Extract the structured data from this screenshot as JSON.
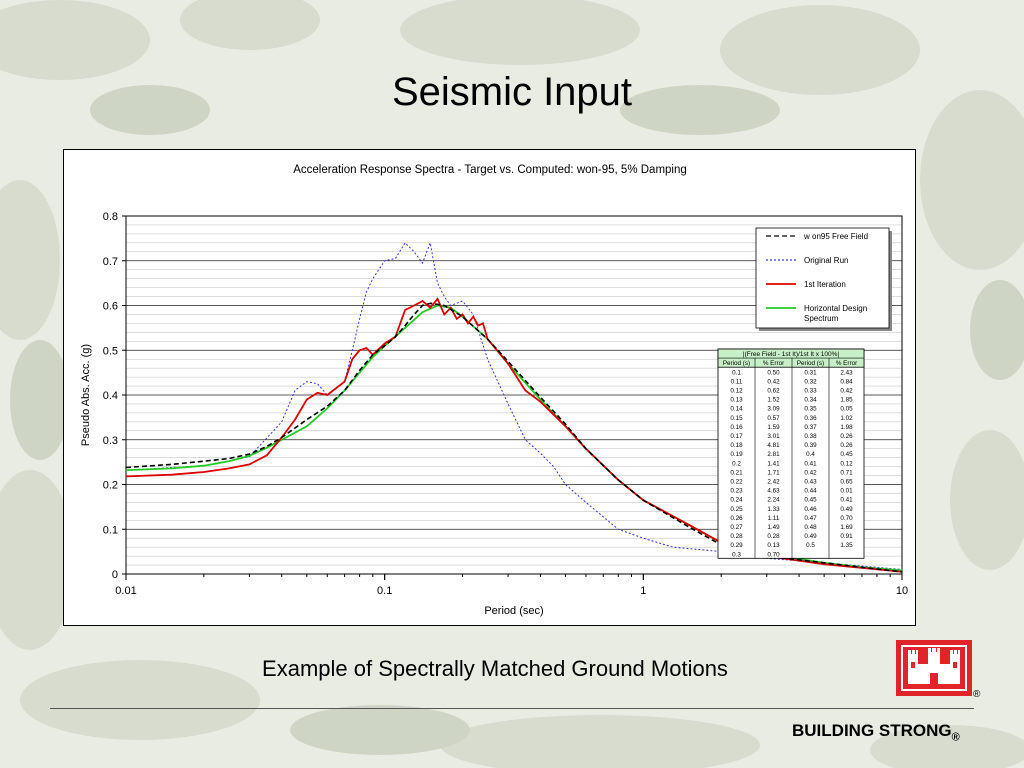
{
  "slide": {
    "title": "Seismic Input",
    "caption": "Example of Spectrally Matched Ground Motions",
    "footer_motto": "BUILDING STRONG",
    "footer_reg": "®",
    "logo_reg": "®"
  },
  "colors": {
    "free_field": "#000000",
    "original_run": "#3333dd",
    "first_iteration": "#dd0000",
    "design_spectrum": "#22cc22",
    "table_header_bg": "#c8f0c8",
    "logo_red": "#e0242a"
  },
  "chart_data": {
    "type": "line",
    "title": "Acceleration Response Spectra - Target vs. Computed: won-95, 5% Damping",
    "xlabel": "Period (sec)",
    "ylabel": "Pseudo Abs. Acc. (g)",
    "xscale": "log",
    "xlim": [
      0.01,
      10
    ],
    "ylim": [
      0,
      0.8
    ],
    "xticks": [
      "0.01",
      "0.1",
      "1",
      "10"
    ],
    "yticks": [
      "0",
      "0.1",
      "0.2",
      "0.3",
      "0.4",
      "0.5",
      "0.6",
      "0.7",
      "0.8"
    ],
    "grid": true,
    "legend_position": "top-right",
    "series": [
      {
        "name": "w on95 Free Field",
        "style": "dashed",
        "color": "#000000",
        "points": [
          [
            0.01,
            0.238
          ],
          [
            0.015,
            0.245
          ],
          [
            0.02,
            0.252
          ],
          [
            0.025,
            0.258
          ],
          [
            0.03,
            0.268
          ],
          [
            0.035,
            0.285
          ],
          [
            0.04,
            0.305
          ],
          [
            0.05,
            0.345
          ],
          [
            0.06,
            0.375
          ],
          [
            0.07,
            0.41
          ],
          [
            0.08,
            0.455
          ],
          [
            0.09,
            0.49
          ],
          [
            0.1,
            0.51
          ],
          [
            0.11,
            0.53
          ],
          [
            0.12,
            0.555
          ],
          [
            0.13,
            0.58
          ],
          [
            0.14,
            0.6
          ],
          [
            0.15,
            0.605
          ],
          [
            0.17,
            0.6
          ],
          [
            0.2,
            0.575
          ],
          [
            0.25,
            0.525
          ],
          [
            0.3,
            0.475
          ],
          [
            0.4,
            0.395
          ],
          [
            0.5,
            0.335
          ],
          [
            0.6,
            0.28
          ],
          [
            0.8,
            0.21
          ],
          [
            1,
            0.165
          ],
          [
            1.5,
            0.105
          ],
          [
            2,
            0.065
          ],
          [
            3,
            0.04
          ],
          [
            5,
            0.025
          ],
          [
            7,
            0.015
          ],
          [
            10,
            0.005
          ]
        ]
      },
      {
        "name": "Original Run",
        "style": "dotted",
        "color": "#3333dd",
        "points": [
          [
            0.01,
            0.232
          ],
          [
            0.02,
            0.242
          ],
          [
            0.03,
            0.262
          ],
          [
            0.04,
            0.34
          ],
          [
            0.045,
            0.41
          ],
          [
            0.05,
            0.43
          ],
          [
            0.055,
            0.425
          ],
          [
            0.06,
            0.4
          ],
          [
            0.07,
            0.43
          ],
          [
            0.075,
            0.5
          ],
          [
            0.08,
            0.57
          ],
          [
            0.085,
            0.63
          ],
          [
            0.09,
            0.66
          ],
          [
            0.1,
            0.7
          ],
          [
            0.11,
            0.705
          ],
          [
            0.12,
            0.74
          ],
          [
            0.13,
            0.72
          ],
          [
            0.14,
            0.695
          ],
          [
            0.15,
            0.74
          ],
          [
            0.16,
            0.65
          ],
          [
            0.17,
            0.62
          ],
          [
            0.18,
            0.6
          ],
          [
            0.2,
            0.61
          ],
          [
            0.22,
            0.58
          ],
          [
            0.25,
            0.48
          ],
          [
            0.3,
            0.38
          ],
          [
            0.35,
            0.3
          ],
          [
            0.4,
            0.27
          ],
          [
            0.45,
            0.24
          ],
          [
            0.5,
            0.2
          ],
          [
            0.6,
            0.16
          ],
          [
            0.8,
            0.1
          ],
          [
            1,
            0.08
          ],
          [
            1.3,
            0.06
          ],
          [
            2,
            0.05
          ],
          [
            3,
            0.035
          ],
          [
            5,
            0.025
          ],
          [
            10,
            0.01
          ]
        ]
      },
      {
        "name": "1st Iteration",
        "style": "solid",
        "color": "#dd0000",
        "points": [
          [
            0.01,
            0.218
          ],
          [
            0.015,
            0.222
          ],
          [
            0.02,
            0.228
          ],
          [
            0.025,
            0.236
          ],
          [
            0.03,
            0.245
          ],
          [
            0.035,
            0.265
          ],
          [
            0.04,
            0.305
          ],
          [
            0.045,
            0.345
          ],
          [
            0.05,
            0.39
          ],
          [
            0.055,
            0.405
          ],
          [
            0.06,
            0.4
          ],
          [
            0.07,
            0.43
          ],
          [
            0.075,
            0.48
          ],
          [
            0.08,
            0.5
          ],
          [
            0.085,
            0.505
          ],
          [
            0.09,
            0.49
          ],
          [
            0.1,
            0.515
          ],
          [
            0.11,
            0.53
          ],
          [
            0.12,
            0.59
          ],
          [
            0.13,
            0.6
          ],
          [
            0.135,
            0.605
          ],
          [
            0.14,
            0.61
          ],
          [
            0.15,
            0.595
          ],
          [
            0.16,
            0.615
          ],
          [
            0.17,
            0.58
          ],
          [
            0.18,
            0.595
          ],
          [
            0.19,
            0.57
          ],
          [
            0.2,
            0.58
          ],
          [
            0.21,
            0.56
          ],
          [
            0.22,
            0.575
          ],
          [
            0.23,
            0.555
          ],
          [
            0.24,
            0.56
          ],
          [
            0.25,
            0.525
          ],
          [
            0.3,
            0.47
          ],
          [
            0.35,
            0.41
          ],
          [
            0.4,
            0.385
          ],
          [
            0.5,
            0.33
          ],
          [
            0.6,
            0.28
          ],
          [
            0.8,
            0.21
          ],
          [
            1,
            0.165
          ],
          [
            1.5,
            0.11
          ],
          [
            2,
            0.07
          ],
          [
            3,
            0.04
          ],
          [
            5,
            0.022
          ],
          [
            10,
            0.005
          ]
        ]
      },
      {
        "name": "Horizontal Design Spectrum",
        "style": "solid",
        "color": "#22cc22",
        "points": [
          [
            0.01,
            0.232
          ],
          [
            0.015,
            0.236
          ],
          [
            0.02,
            0.242
          ],
          [
            0.025,
            0.252
          ],
          [
            0.03,
            0.264
          ],
          [
            0.035,
            0.282
          ],
          [
            0.04,
            0.3
          ],
          [
            0.05,
            0.33
          ],
          [
            0.06,
            0.37
          ],
          [
            0.07,
            0.41
          ],
          [
            0.08,
            0.45
          ],
          [
            0.09,
            0.485
          ],
          [
            0.1,
            0.51
          ],
          [
            0.12,
            0.55
          ],
          [
            0.14,
            0.585
          ],
          [
            0.16,
            0.6
          ],
          [
            0.18,
            0.595
          ],
          [
            0.2,
            0.575
          ],
          [
            0.25,
            0.525
          ],
          [
            0.3,
            0.47
          ],
          [
            0.4,
            0.39
          ],
          [
            0.5,
            0.33
          ],
          [
            0.6,
            0.28
          ],
          [
            0.8,
            0.21
          ],
          [
            1,
            0.165
          ],
          [
            1.5,
            0.11
          ],
          [
            2,
            0.07
          ],
          [
            3,
            0.045
          ],
          [
            5,
            0.025
          ],
          [
            7,
            0.015
          ],
          [
            10,
            0.008
          ]
        ]
      }
    ],
    "error_table": {
      "title": "|(Free Field - 1st It)/1st It x 100%|",
      "headers": [
        "Period (s)",
        "% Error",
        "Period (s)",
        "% Error"
      ],
      "rows": [
        [
          "0.1",
          "0.50",
          "0.31",
          "2.43"
        ],
        [
          "0.11",
          "0.42",
          "0.32",
          "0.84"
        ],
        [
          "0.12",
          "0.62",
          "0.33",
          "0.42"
        ],
        [
          "0.13",
          "1.52",
          "0.34",
          "1.85"
        ],
        [
          "0.14",
          "3.09",
          "0.35",
          "0.05"
        ],
        [
          "0.15",
          "0.57",
          "0.36",
          "1.02"
        ],
        [
          "0.16",
          "1.59",
          "0.37",
          "1.98"
        ],
        [
          "0.17",
          "3.01",
          "0.38",
          "0.26"
        ],
        [
          "0.18",
          "4.81",
          "0.39",
          "0.26"
        ],
        [
          "0.19",
          "2.81",
          "0.4",
          "0.45"
        ],
        [
          "0.2",
          "1.41",
          "0.41",
          "0.12"
        ],
        [
          "0.21",
          "1.71",
          "0.42",
          "0.71"
        ],
        [
          "0.22",
          "2.42",
          "0.43",
          "0.65"
        ],
        [
          "0.23",
          "4.63",
          "0.44",
          "0.01"
        ],
        [
          "0.24",
          "2.24",
          "0.45",
          "0.41"
        ],
        [
          "0.25",
          "1.33",
          "0.46",
          "0.49"
        ],
        [
          "0.26",
          "1.11",
          "0.47",
          "0.70"
        ],
        [
          "0.27",
          "1.49",
          "0.48",
          "1.69"
        ],
        [
          "0.28",
          "0.28",
          "0.49",
          "0.91"
        ],
        [
          "0.29",
          "0.13",
          "0.5",
          "1.35"
        ],
        [
          "0.3",
          "0.70",
          "",
          ""
        ]
      ]
    }
  }
}
